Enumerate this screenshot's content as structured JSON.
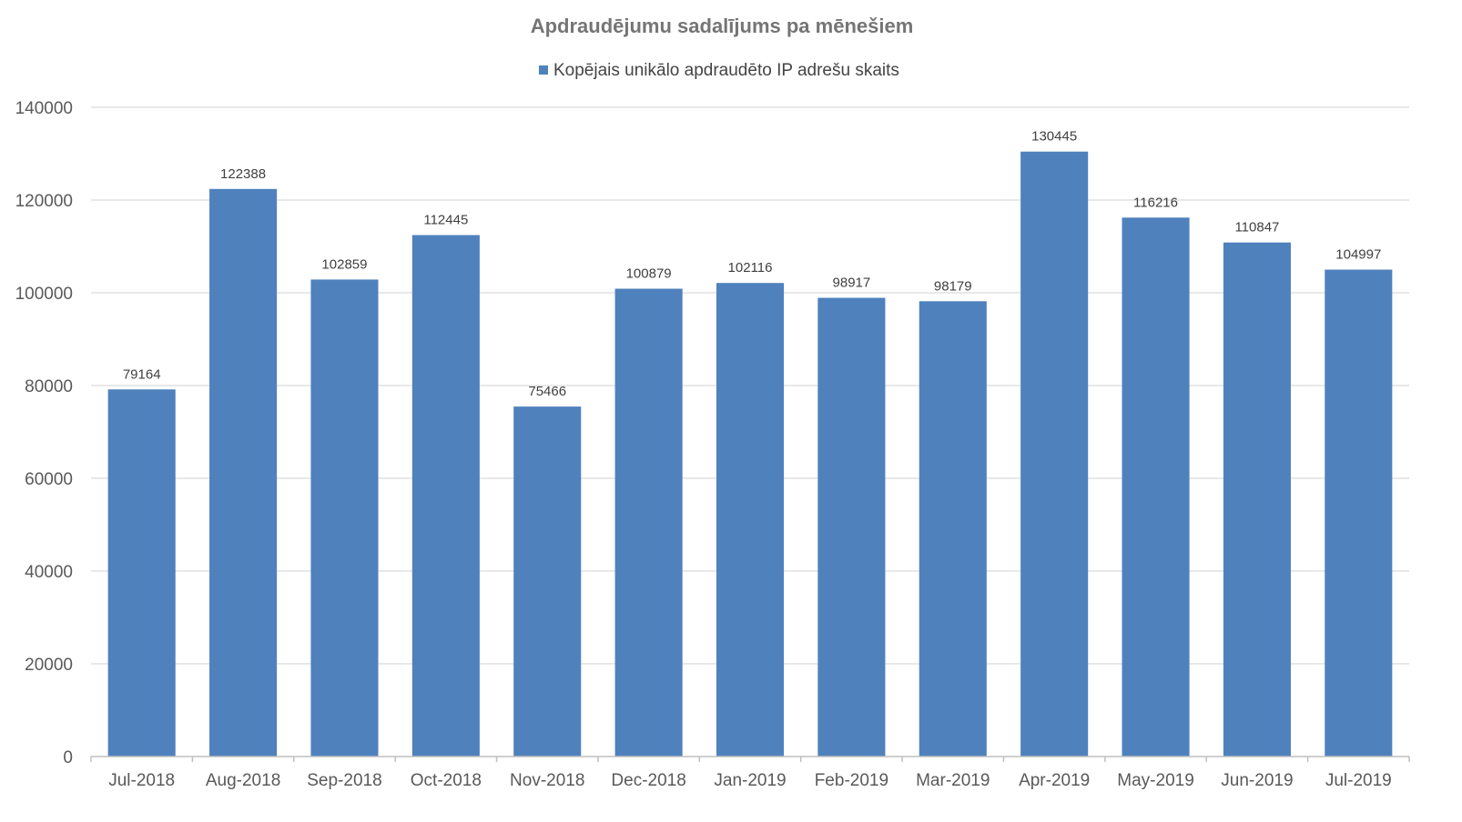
{
  "chart_data": {
    "type": "bar",
    "title": "Apdraudējumu sadalījums pa mēnešiem",
    "xlabel": "",
    "ylabel": "",
    "categories": [
      "Jul-2018",
      "Aug-2018",
      "Sep-2018",
      "Oct-2018",
      "Nov-2018",
      "Dec-2018",
      "Jan-2019",
      "Feb-2019",
      "Mar-2019",
      "Apr-2019",
      "May-2019",
      "Jun-2019",
      "Jul-2019"
    ],
    "series": [
      {
        "name": "Kopējais unikālo apdraudēto IP adrešu skaits",
        "color": "#4f81bd",
        "values": [
          79164,
          122388,
          102859,
          112445,
          75466,
          100879,
          102116,
          98917,
          98179,
          130445,
          116216,
          110847,
          104997
        ]
      }
    ],
    "ylim": [
      0,
      140000
    ],
    "yticks": [
      "0",
      "20000",
      "40000",
      "60000",
      "80000",
      "100000",
      "120000",
      "140000"
    ],
    "data_labels": true,
    "grid": true,
    "legend_position": "top"
  }
}
